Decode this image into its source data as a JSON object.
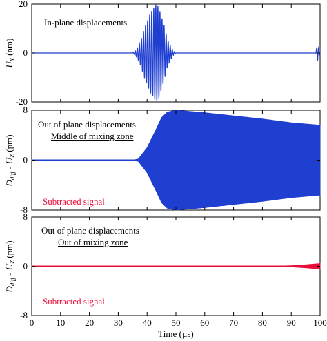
{
  "chart_data": [
    {
      "type": "line",
      "panel": "top",
      "xlim": [
        0,
        100
      ],
      "ylim": [
        -20,
        20
      ],
      "yticks": [
        "20",
        "0",
        "-20"
      ],
      "ylabel": "U_Y (nm)",
      "annotation": "In-plane displacements",
      "color": "#1f3fd1",
      "series": [
        {
          "name": "",
          "description_points": {
            "x": [
              0,
              35,
              36,
              37,
              38,
              39,
              40,
              41,
              42,
              43,
              44,
              45,
              46,
              47,
              48,
              49,
              50,
              98.5,
              99,
              99.5,
              100
            ],
            "y_envelope": [
              0,
              0,
              1,
              3,
              6,
              10,
              13,
              16,
              18,
              20,
              19,
              15,
              11,
              6,
              3,
              1,
              0,
              0,
              3.5,
              2,
              0
            ]
          }
        }
      ]
    },
    {
      "type": "area",
      "panel": "middle",
      "xlim": [
        0,
        100
      ],
      "ylim": [
        -8,
        8
      ],
      "yticks": [
        "8",
        "0",
        "-8"
      ],
      "ylabel": "D_diff - U_Z (pm)",
      "annotation": [
        "Out of plane displacements",
        "Middle of mixing zone"
      ],
      "legend_text": "Subtracted signal",
      "color": "#1f3fd1",
      "series": [
        {
          "name": "",
          "x": [
            0,
            35,
            37,
            40,
            43,
            45,
            47,
            50,
            60,
            70,
            80,
            90,
            100
          ],
          "y_envelope": [
            0,
            0,
            0.2,
            2.0,
            4.8,
            6.8,
            7.7,
            8.0,
            7.6,
            7.1,
            6.6,
            6.0,
            5.6
          ]
        }
      ]
    },
    {
      "type": "area",
      "panel": "bottom",
      "xlim": [
        0,
        100
      ],
      "ylim": [
        -8,
        8
      ],
      "yticks": [
        "8",
        "0",
        "-8"
      ],
      "xticks": [
        "0",
        "10",
        "20",
        "30",
        "40",
        "50",
        "60",
        "70",
        "80",
        "90",
        "100"
      ],
      "xlabel": "Time (µs)",
      "ylabel": "D_diff - U_Z (pm)",
      "annotation": [
        "Out of plane displacements",
        "Out of mixing zone"
      ],
      "legend_text": "Subtracted signal",
      "color": "#e8103a",
      "series": [
        {
          "name": "",
          "x": [
            0,
            80,
            85,
            90,
            95,
            100
          ],
          "y_envelope": [
            0,
            0,
            0.03,
            0.1,
            0.25,
            0.45
          ]
        }
      ]
    }
  ],
  "labels": {
    "top_annot": "In-plane displacements",
    "mid_annot1": "Out of plane displacements",
    "mid_annot2": "Middle of mixing zone",
    "mid_red": "Subtracted signal",
    "bot_annot1": "Out of plane displacements",
    "bot_annot2": "Out of mixing zone",
    "bot_red": "Subtracted signal",
    "xlabel": "Time (µs)",
    "top_ylabel_main": "U",
    "top_ylabel_sub": "Y",
    "top_ylabel_unit": " (nm)",
    "ylabel_D": "D",
    "ylabel_Dsub": "diff",
    "ylabel_mid": " - U",
    "ylabel_Zsub": "Z",
    "ylabel_unit": " (pm)"
  }
}
